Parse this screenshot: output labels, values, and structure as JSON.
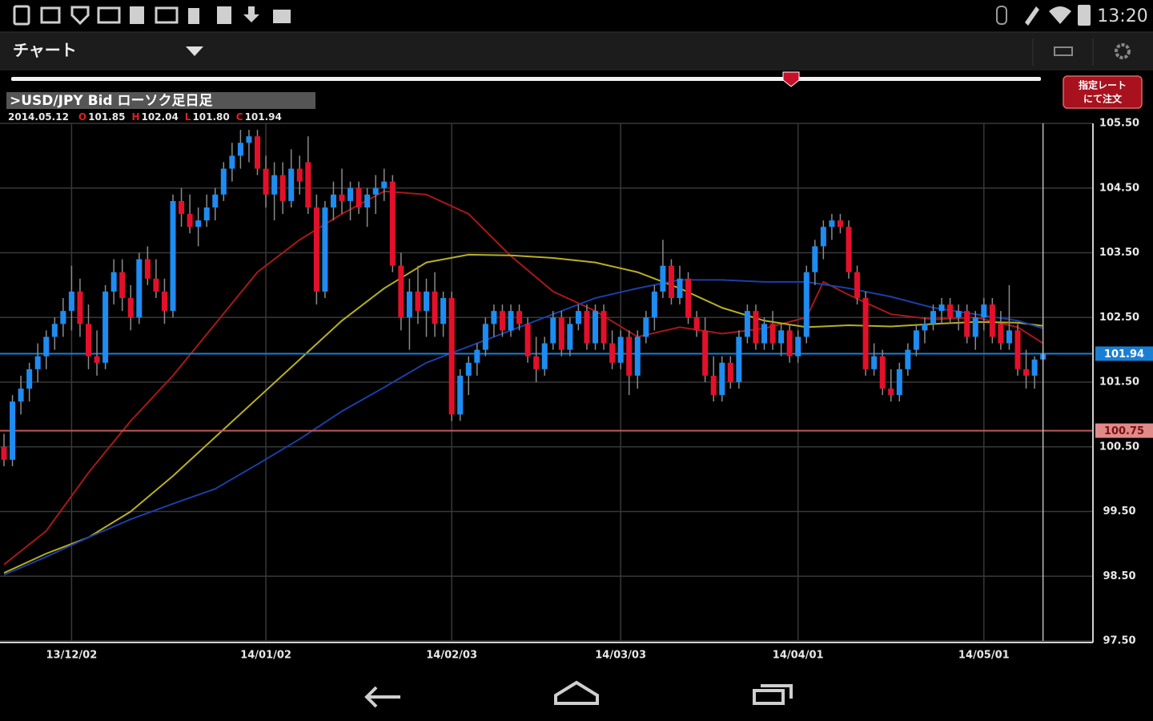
{
  "status_bar": {
    "time": "13:20"
  },
  "app_bar": {
    "title": "チャート"
  },
  "order_button": {
    "lines": [
      "指定レート",
      "にて注文"
    ]
  },
  "ohlc_info": {
    "date": "2014.05.12",
    "items": [
      {
        "key": "O",
        "value": "101.85"
      },
      {
        "key": "H",
        "value": "102.04"
      },
      {
        "key": "L",
        "value": "101.80"
      },
      {
        "key": "C",
        "value": "101.94"
      }
    ]
  },
  "chart_data": {
    "type": "candlestick",
    "title": ">USD/JPY Bid ローソク足日足",
    "categories": [
      null,
      null,
      null,
      null,
      null,
      null,
      null,
      null,
      "13/12/02",
      null,
      null,
      null,
      null,
      null,
      null,
      null,
      null,
      null,
      null,
      null,
      null,
      null,
      null,
      null,
      null,
      null,
      null,
      null,
      null,
      null,
      null,
      "14/01/02",
      null,
      null,
      null,
      null,
      null,
      null,
      null,
      null,
      null,
      null,
      null,
      null,
      null,
      null,
      null,
      null,
      null,
      null,
      null,
      null,
      null,
      "14/02/03",
      null,
      null,
      null,
      null,
      null,
      null,
      null,
      null,
      null,
      null,
      null,
      null,
      null,
      null,
      null,
      null,
      null,
      null,
      null,
      "14/03/03",
      null,
      null,
      null,
      null,
      null,
      null,
      null,
      null,
      null,
      null,
      null,
      null,
      null,
      null,
      null,
      null,
      null,
      null,
      null,
      null,
      "14/04/01",
      null,
      null,
      null,
      null,
      null,
      null,
      null,
      null,
      null,
      null,
      null,
      null,
      null,
      null,
      null,
      null,
      null,
      null,
      null,
      null,
      null,
      "14/05/01",
      null,
      null,
      null,
      null,
      null,
      null,
      null
    ],
    "ohlc": [
      [
        100.5,
        100.7,
        100.2,
        100.3
      ],
      [
        100.3,
        101.3,
        100.2,
        101.2
      ],
      [
        101.2,
        101.6,
        101.0,
        101.4
      ],
      [
        101.4,
        101.8,
        101.2,
        101.7
      ],
      [
        101.7,
        102.1,
        101.5,
        101.9
      ],
      [
        101.9,
        102.3,
        101.7,
        102.2
      ],
      [
        102.2,
        102.5,
        102.0,
        102.4
      ],
      [
        102.4,
        102.8,
        102.2,
        102.6
      ],
      [
        102.6,
        103.3,
        102.3,
        102.9
      ],
      [
        102.9,
        103.1,
        102.2,
        102.4
      ],
      [
        102.4,
        102.7,
        101.7,
        101.9
      ],
      [
        101.9,
        102.3,
        101.6,
        101.8
      ],
      [
        101.8,
        103.0,
        101.7,
        102.9
      ],
      [
        102.9,
        103.4,
        102.7,
        103.2
      ],
      [
        103.2,
        103.4,
        102.6,
        102.8
      ],
      [
        102.8,
        103.0,
        102.3,
        102.5
      ],
      [
        102.5,
        103.5,
        102.4,
        103.4
      ],
      [
        103.4,
        103.6,
        103.0,
        103.1
      ],
      [
        103.1,
        103.4,
        102.8,
        102.9
      ],
      [
        102.9,
        103.1,
        102.4,
        102.6
      ],
      [
        102.6,
        104.4,
        102.5,
        104.3
      ],
      [
        104.3,
        104.5,
        103.9,
        104.1
      ],
      [
        104.1,
        104.4,
        103.8,
        103.9
      ],
      [
        103.9,
        104.2,
        103.6,
        104.0
      ],
      [
        104.0,
        104.4,
        103.9,
        104.2
      ],
      [
        104.2,
        104.5,
        104.0,
        104.4
      ],
      [
        104.4,
        104.9,
        104.3,
        104.8
      ],
      [
        104.8,
        105.2,
        104.6,
        105.0
      ],
      [
        105.0,
        105.4,
        104.8,
        105.2
      ],
      [
        105.2,
        105.4,
        104.9,
        105.3
      ],
      [
        105.3,
        105.4,
        104.7,
        104.8
      ],
      [
        104.8,
        105.0,
        104.2,
        104.4
      ],
      [
        104.4,
        104.9,
        104.0,
        104.7
      ],
      [
        104.7,
        104.9,
        104.1,
        104.3
      ],
      [
        104.3,
        105.1,
        104.2,
        104.8
      ],
      [
        104.8,
        105.0,
        104.4,
        104.6
      ],
      [
        104.9,
        105.3,
        104.1,
        104.2
      ],
      [
        104.2,
        104.4,
        102.7,
        102.9
      ],
      [
        102.9,
        104.3,
        102.8,
        104.2
      ],
      [
        104.2,
        104.6,
        104.0,
        104.4
      ],
      [
        104.4,
        104.8,
        104.1,
        104.3
      ],
      [
        104.3,
        104.6,
        104.0,
        104.5
      ],
      [
        104.5,
        104.6,
        104.1,
        104.2
      ],
      [
        104.2,
        104.5,
        103.9,
        104.4
      ],
      [
        104.4,
        104.7,
        104.1,
        104.5
      ],
      [
        104.5,
        104.8,
        104.3,
        104.6
      ],
      [
        104.6,
        104.7,
        103.2,
        103.3
      ],
      [
        103.3,
        103.5,
        102.3,
        102.5
      ],
      [
        102.5,
        103.1,
        102.0,
        102.9
      ],
      [
        102.9,
        103.3,
        102.4,
        102.6
      ],
      [
        102.6,
        103.1,
        102.2,
        102.9
      ],
      [
        102.9,
        103.2,
        102.2,
        102.4
      ],
      [
        102.4,
        102.9,
        102.2,
        102.8
      ],
      [
        102.8,
        102.9,
        100.9,
        101.0
      ],
      [
        101.0,
        101.7,
        100.9,
        101.6
      ],
      [
        101.6,
        101.9,
        101.3,
        101.8
      ],
      [
        101.8,
        102.1,
        101.6,
        102.0
      ],
      [
        102.0,
        102.5,
        101.9,
        102.4
      ],
      [
        102.4,
        102.7,
        102.2,
        102.6
      ],
      [
        102.6,
        102.7,
        102.2,
        102.3
      ],
      [
        102.3,
        102.7,
        102.2,
        102.6
      ],
      [
        102.6,
        102.7,
        102.3,
        102.4
      ],
      [
        102.4,
        102.5,
        101.8,
        101.9
      ],
      [
        101.9,
        102.2,
        101.5,
        101.7
      ],
      [
        101.7,
        102.2,
        101.6,
        102.1
      ],
      [
        102.1,
        102.6,
        102.0,
        102.5
      ],
      [
        102.5,
        102.6,
        101.9,
        102.0
      ],
      [
        102.0,
        102.5,
        101.9,
        102.4
      ],
      [
        102.4,
        102.7,
        102.3,
        102.6
      ],
      [
        102.6,
        102.7,
        102.0,
        102.1
      ],
      [
        102.1,
        102.7,
        102.0,
        102.6
      ],
      [
        102.6,
        102.7,
        102.0,
        102.1
      ],
      [
        102.1,
        102.3,
        101.7,
        101.8
      ],
      [
        101.8,
        102.3,
        101.7,
        102.2
      ],
      [
        102.2,
        102.3,
        101.3,
        101.6
      ],
      [
        101.6,
        102.3,
        101.4,
        102.2
      ],
      [
        102.2,
        102.6,
        102.1,
        102.5
      ],
      [
        102.5,
        103.0,
        102.3,
        102.9
      ],
      [
        102.9,
        103.7,
        102.8,
        103.3
      ],
      [
        103.3,
        103.4,
        102.7,
        102.8
      ],
      [
        102.8,
        103.3,
        102.7,
        103.1
      ],
      [
        103.1,
        103.2,
        102.4,
        102.5
      ],
      [
        102.5,
        102.6,
        102.2,
        102.3
      ],
      [
        102.3,
        102.5,
        101.5,
        101.6
      ],
      [
        101.6,
        101.9,
        101.2,
        101.3
      ],
      [
        101.3,
        101.9,
        101.2,
        101.8
      ],
      [
        101.8,
        101.9,
        101.4,
        101.5
      ],
      [
        101.5,
        102.3,
        101.4,
        102.2
      ],
      [
        102.2,
        102.7,
        102.1,
        102.6
      ],
      [
        102.6,
        102.7,
        102.0,
        102.1
      ],
      [
        102.1,
        102.5,
        102.0,
        102.4
      ],
      [
        102.4,
        102.6,
        102.0,
        102.1
      ],
      [
        102.1,
        102.4,
        101.9,
        102.3
      ],
      [
        102.3,
        102.4,
        101.8,
        101.9
      ],
      [
        101.9,
        102.3,
        101.8,
        102.2
      ],
      [
        102.2,
        103.3,
        102.1,
        103.2
      ],
      [
        103.2,
        103.7,
        103.0,
        103.6
      ],
      [
        103.6,
        104.0,
        103.4,
        103.9
      ],
      [
        103.9,
        104.1,
        103.7,
        104.0
      ],
      [
        104.0,
        104.1,
        103.8,
        103.9
      ],
      [
        103.9,
        104.0,
        103.1,
        103.2
      ],
      [
        103.2,
        103.3,
        102.7,
        102.8
      ],
      [
        102.8,
        102.9,
        101.6,
        101.7
      ],
      [
        101.7,
        102.1,
        101.6,
        101.9
      ],
      [
        101.9,
        102.0,
        101.3,
        101.4
      ],
      [
        101.4,
        101.7,
        101.2,
        101.3
      ],
      [
        101.3,
        101.8,
        101.2,
        101.7
      ],
      [
        101.7,
        102.1,
        101.6,
        102.0
      ],
      [
        102.0,
        102.4,
        101.9,
        102.3
      ],
      [
        102.3,
        102.5,
        102.1,
        102.4
      ],
      [
        102.4,
        102.7,
        102.3,
        102.6
      ],
      [
        102.6,
        102.8,
        102.4,
        102.7
      ],
      [
        102.7,
        102.8,
        102.4,
        102.5
      ],
      [
        102.5,
        102.7,
        102.3,
        102.6
      ],
      [
        102.6,
        102.7,
        102.1,
        102.2
      ],
      [
        102.2,
        102.6,
        102.0,
        102.5
      ],
      [
        102.5,
        102.8,
        102.3,
        102.7
      ],
      [
        102.7,
        102.8,
        102.1,
        102.2
      ],
      [
        102.4,
        102.6,
        102.0,
        102.1
      ],
      [
        102.1,
        103.0,
        102.0,
        102.3
      ],
      [
        102.3,
        102.4,
        101.6,
        101.7
      ],
      [
        101.7,
        102.0,
        101.4,
        101.6
      ],
      [
        101.6,
        101.9,
        101.4,
        101.85
      ],
      [
        101.85,
        102.04,
        101.8,
        101.94
      ]
    ],
    "up_color": "#1e8cf0",
    "down_color": "#e4102a",
    "wick_color": "#8a8a8a",
    "series": [
      {
        "color": "#a81818",
        "x": [
          0,
          5,
          10,
          15,
          20,
          25,
          30,
          35,
          40,
          45,
          50,
          55,
          60,
          65,
          70,
          75,
          80,
          85,
          90,
          95,
          97,
          100,
          105,
          110,
          115,
          120,
          123
        ],
        "values": [
          98.68,
          99.2,
          100.1,
          100.9,
          101.6,
          102.4,
          103.2,
          103.7,
          104.1,
          104.45,
          104.4,
          104.1,
          103.45,
          102.9,
          102.6,
          102.2,
          102.35,
          102.25,
          102.33,
          102.5,
          103.05,
          102.85,
          102.55,
          102.47,
          102.5,
          102.35,
          102.1
        ]
      },
      {
        "color": "#b8b020",
        "x": [
          0,
          5,
          10,
          15,
          20,
          25,
          30,
          35,
          40,
          45,
          50,
          55,
          60,
          65,
          70,
          75,
          80,
          85,
          90,
          95,
          100,
          105,
          110,
          115,
          120,
          123
        ],
        "values": [
          98.55,
          98.85,
          99.1,
          99.5,
          100.05,
          100.65,
          101.25,
          101.85,
          102.45,
          102.95,
          103.35,
          103.47,
          103.46,
          103.42,
          103.35,
          103.2,
          102.95,
          102.65,
          102.45,
          102.35,
          102.38,
          102.36,
          102.4,
          102.43,
          102.42,
          102.37
        ]
      },
      {
        "color": "#1a3fa8",
        "x": [
          0,
          5,
          10,
          15,
          20,
          25,
          30,
          35,
          40,
          45,
          50,
          55,
          60,
          65,
          70,
          75,
          80,
          85,
          90,
          95,
          100,
          105,
          110,
          115,
          120,
          123
        ],
        "values": [
          98.52,
          98.8,
          99.1,
          99.38,
          99.62,
          99.85,
          100.23,
          100.62,
          101.05,
          101.42,
          101.8,
          102.05,
          102.3,
          102.55,
          102.8,
          102.95,
          103.08,
          103.08,
          103.05,
          103.05,
          102.95,
          102.82,
          102.65,
          102.55,
          102.45,
          102.33
        ]
      }
    ],
    "price_lines": [
      {
        "value": 101.94,
        "color": "#1a7fd4",
        "label_fill": "#1a7fd4",
        "label_color": "#ffffff"
      },
      {
        "value": 100.75,
        "color": "#c05858",
        "label_fill": "#e08a8a",
        "label_color": "#7a1010"
      }
    ],
    "ylim": [
      97.5,
      105.5
    ],
    "yticks": [
      {
        "value": 97.5,
        "label": "97.50"
      },
      {
        "value": 98.5,
        "label": "98.50"
      },
      {
        "value": 99.5,
        "label": "99.50"
      },
      {
        "value": 100.5,
        "label": "100.50"
      },
      {
        "value": 101.5,
        "label": "101.50"
      },
      {
        "value": 102.5,
        "label": "102.50"
      },
      {
        "value": 103.5,
        "label": "103.50"
      },
      {
        "value": 104.5,
        "label": "104.50"
      },
      {
        "value": 105.5,
        "label": "105.50"
      }
    ],
    "grid": true
  }
}
